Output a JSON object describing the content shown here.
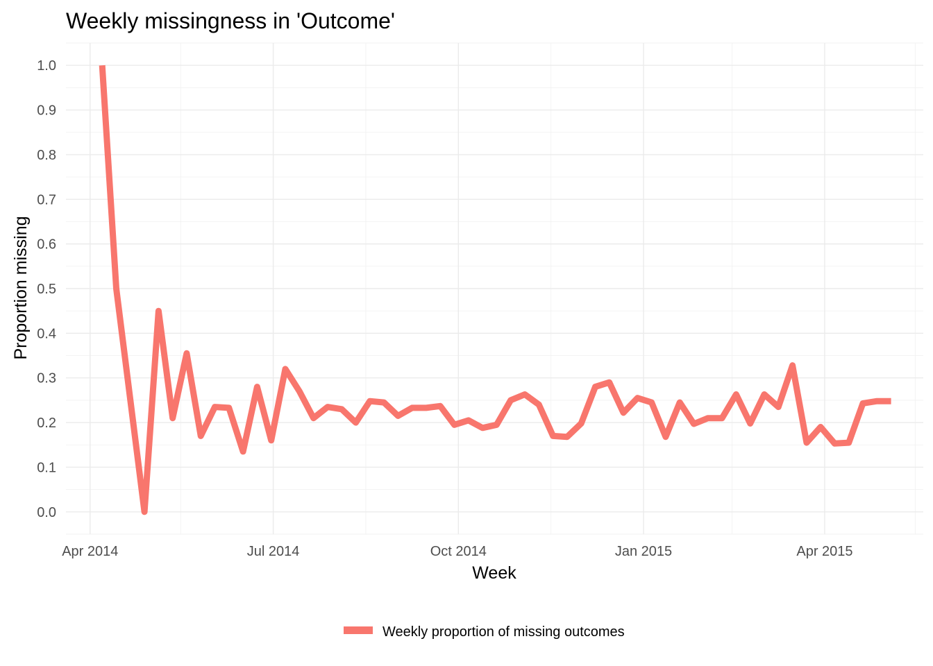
{
  "chart_data": {
    "type": "line",
    "title": "Weekly missingness in 'Outcome'",
    "xlabel": "Week",
    "ylabel": "Proportion missing",
    "x_ticks": [
      {
        "date": "2014-04-01",
        "label": "Apr 2014"
      },
      {
        "date": "2014-07-01",
        "label": "Jul 2014"
      },
      {
        "date": "2014-10-01",
        "label": "Oct 2014"
      },
      {
        "date": "2015-01-01",
        "label": "Jan 2015"
      },
      {
        "date": "2015-04-01",
        "label": "Apr 2015"
      }
    ],
    "x_minor_ticks": [
      "2014-05-16",
      "2014-08-16",
      "2014-11-16",
      "2015-02-14",
      "2015-05-16"
    ],
    "xlim": [
      "2014-03-20",
      "2015-05-20"
    ],
    "y_ticks": [
      "0.0",
      "0.1",
      "0.2",
      "0.3",
      "0.4",
      "0.5",
      "0.6",
      "0.7",
      "0.8",
      "0.9",
      "1.0"
    ],
    "ylim": [
      -0.05,
      1.05
    ],
    "grid": true,
    "legend_position": "bottom",
    "series": [
      {
        "name": "Weekly proportion of missing outcomes",
        "color": "#F8766D",
        "x": [
          "2014-04-07",
          "2014-04-14",
          "2014-04-21",
          "2014-04-28",
          "2014-05-05",
          "2014-05-12",
          "2014-05-19",
          "2014-05-26",
          "2014-06-02",
          "2014-06-09",
          "2014-06-16",
          "2014-06-23",
          "2014-06-30",
          "2014-07-07",
          "2014-07-14",
          "2014-07-21",
          "2014-07-28",
          "2014-08-04",
          "2014-08-11",
          "2014-08-18",
          "2014-08-25",
          "2014-09-01",
          "2014-09-08",
          "2014-09-15",
          "2014-09-22",
          "2014-09-29",
          "2014-10-06",
          "2014-10-13",
          "2014-10-20",
          "2014-10-27",
          "2014-11-03",
          "2014-11-10",
          "2014-11-17",
          "2014-11-24",
          "2014-12-01",
          "2014-12-08",
          "2014-12-15",
          "2014-12-22",
          "2014-12-29",
          "2015-01-05",
          "2015-01-12",
          "2015-01-19",
          "2015-01-26",
          "2015-02-02",
          "2015-02-09",
          "2015-02-16",
          "2015-02-23",
          "2015-03-02",
          "2015-03-09",
          "2015-03-16",
          "2015-03-23",
          "2015-03-30",
          "2015-04-06",
          "2015-04-13",
          "2015-04-20",
          "2015-04-27",
          "2015-05-04"
        ],
        "values": [
          1.0,
          0.5,
          0.25,
          0.0,
          0.45,
          0.21,
          0.355,
          0.17,
          0.235,
          0.233,
          0.135,
          0.28,
          0.16,
          0.32,
          0.27,
          0.21,
          0.235,
          0.23,
          0.2,
          0.248,
          0.245,
          0.215,
          0.233,
          0.233,
          0.237,
          0.195,
          0.205,
          0.188,
          0.195,
          0.25,
          0.263,
          0.24,
          0.17,
          0.168,
          0.198,
          0.28,
          0.29,
          0.222,
          0.255,
          0.245,
          0.168,
          0.245,
          0.197,
          0.21,
          0.21,
          0.263,
          0.198,
          0.263,
          0.235,
          0.328,
          0.155,
          0.19,
          0.153,
          0.155,
          0.243,
          0.248,
          0.248
        ]
      }
    ]
  }
}
